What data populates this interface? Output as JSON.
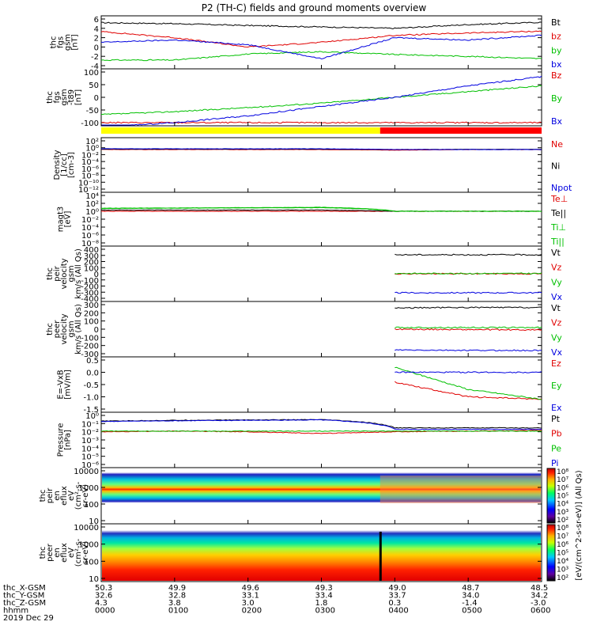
{
  "title": "P2 (TH-C) fields and ground moments overview",
  "panels": [
    {
      "key": "fgs_gsm",
      "ylabel": [
        "thc",
        "fgs",
        "gsm",
        "[nT]"
      ],
      "ylim": [
        -4,
        6
      ],
      "log": false,
      "ticks": [
        "6",
        "4",
        "2",
        "0",
        "-2",
        "-4"
      ],
      "legend": [
        {
          "label": "Bt",
          "color": "#000000"
        },
        {
          "label": "bz",
          "color": "#e00000"
        },
        {
          "label": "by",
          "color": "#00c000"
        },
        {
          "label": "bx",
          "color": "#0000e0"
        }
      ]
    },
    {
      "key": "fgs_gse_t89",
      "ylabel": [
        "thc",
        "fgs",
        "gsm",
        "-t89",
        "[nT]"
      ],
      "ylim": [
        -120,
        100
      ],
      "log": false,
      "ticks": [
        "100",
        "50",
        "0",
        "-50",
        "-100"
      ],
      "legend": [
        {
          "label": "Bz",
          "color": "#e00000"
        },
        {
          "label": "By",
          "color": "#00c000"
        },
        {
          "label": "Bx",
          "color": "#0000e0"
        }
      ]
    },
    {
      "key": "density",
      "ylabel": [
        "Density",
        "[1/cc]",
        "[cm-3]"
      ],
      "log": true,
      "ticks": [
        "10²",
        "10⁰",
        "10⁻²",
        "10⁻⁴",
        "10⁻⁶",
        "10⁻⁸",
        "10⁻¹⁰",
        "10⁻¹²"
      ],
      "legend": [
        {
          "label": "Ne",
          "color": "#e00000"
        },
        {
          "label": "Ni",
          "color": "#000000"
        },
        {
          "label": "Npot",
          "color": "#0000e0"
        }
      ]
    },
    {
      "key": "temperature",
      "ylabel": [
        "magt3",
        "[eV]"
      ],
      "log": true,
      "ticks": [
        "10⁴",
        "10²",
        "10⁰",
        "10⁻²",
        "10⁻⁴",
        "10⁻⁶",
        "10⁻⁸"
      ],
      "legend": [
        {
          "label": "Te⊥",
          "color": "#e00000"
        },
        {
          "label": "Te||",
          "color": "#000000"
        },
        {
          "label": "Ti⊥",
          "color": "#00c000"
        },
        {
          "label": "Ti||",
          "color": "#00c000"
        }
      ]
    },
    {
      "key": "peir_velocity",
      "ylabel": [
        "thc",
        "peir",
        "velocity",
        "gsm",
        "km/s (All Qs)"
      ],
      "ylim": [
        -400,
        400
      ],
      "log": false,
      "ticks": [
        "400",
        "300",
        "200",
        "100",
        "0",
        "-100",
        "-200",
        "-300",
        "-400"
      ],
      "legend": [
        {
          "label": "Vt",
          "color": "#000000"
        },
        {
          "label": "Vz",
          "color": "#e00000"
        },
        {
          "label": "Vy",
          "color": "#00c000"
        },
        {
          "label": "Vx",
          "color": "#0000e0"
        }
      ]
    },
    {
      "key": "peer_velocity",
      "ylabel": [
        "thc",
        "peer",
        "velocity",
        "gsm",
        "km/s (All Qs)"
      ],
      "ylim": [
        -300,
        300
      ],
      "log": false,
      "ticks": [
        "300",
        "200",
        "100",
        "0",
        "-100",
        "-200",
        "-300"
      ],
      "legend": [
        {
          "label": "Vt",
          "color": "#000000"
        },
        {
          "label": "Vz",
          "color": "#e00000"
        },
        {
          "label": "Vy",
          "color": "#00c000"
        },
        {
          "label": "Vx",
          "color": "#0000e0"
        }
      ]
    },
    {
      "key": "efield",
      "ylabel": [
        "E=-VxB",
        "[mV/m]"
      ],
      "ylim": [
        -1.5,
        0.5
      ],
      "log": false,
      "ticks": [
        "0.5",
        "0.0",
        "-0.5",
        "-1.0",
        "-1.5"
      ],
      "legend": [
        {
          "label": "Ez",
          "color": "#e00000"
        },
        {
          "label": "Ey",
          "color": "#00c000"
        },
        {
          "label": "Ex",
          "color": "#0000e0"
        }
      ]
    },
    {
      "key": "pressure",
      "ylabel": [
        "Pressure",
        "[nPa]"
      ],
      "log": true,
      "ticks": [
        "10⁰",
        "10⁻¹",
        "10⁻²",
        "10⁻³",
        "10⁻⁴",
        "10⁻⁵",
        "10⁻⁶"
      ],
      "legend": [
        {
          "label": "Pt",
          "color": "#000000"
        },
        {
          "label": "Pb",
          "color": "#e00000"
        },
        {
          "label": "Pe",
          "color": "#00c000"
        },
        {
          "label": "Pi",
          "color": "#0000e0"
        }
      ]
    },
    {
      "key": "peir_eflux",
      "ylabel": [
        "thc",
        "peir",
        "en",
        "eflux",
        "eV",
        "(cm²-s-",
        "sr-eV)"
      ],
      "log": true,
      "ticks": [
        "10000",
        "1000",
        "100",
        "10"
      ]
    },
    {
      "key": "peer_eflux",
      "ylabel": [
        "thc",
        "peer",
        "en",
        "eflux",
        "eV",
        "(cm²-s-",
        "sr-eV)"
      ],
      "log": true,
      "ticks": [
        "10000",
        "1000",
        "100",
        "10"
      ]
    }
  ],
  "colorbar": {
    "title": "[eV/(cm^2-s-sr-eV)] (All Qs)",
    "ticks_top": [
      "10⁸",
      "10⁷",
      "10⁶",
      "10⁵",
      "10⁴",
      "10³",
      "10²"
    ],
    "ticks_bottom": [
      "10⁸",
      "10⁷",
      "10⁶",
      "10⁵",
      "10⁴",
      "10³",
      "10²"
    ]
  },
  "footer": {
    "rows": [
      {
        "label": "thc_X-GSM",
        "values": [
          "50.3",
          "49.9",
          "49.6",
          "49.3",
          "49.0",
          "48.7",
          "48.5"
        ]
      },
      {
        "label": "thc_Y-GSM",
        "values": [
          "32.6",
          "32.8",
          "33.1",
          "33.4",
          "33.7",
          "34.0",
          "34.2"
        ]
      },
      {
        "label": "thc_Z-GSM",
        "values": [
          "4.3",
          "3.8",
          "3.0",
          "1.8",
          "0.3",
          "-1.4",
          "-3.0"
        ]
      },
      {
        "label": "hhmm",
        "values": [
          "0000",
          "0100",
          "0200",
          "0300",
          "0400",
          "0500",
          "0600"
        ]
      }
    ],
    "date": "2019 Dec 29"
  },
  "chart_data": {
    "type": "line",
    "title": "P2 (TH-C) fields and ground moments overview",
    "x_ticks": [
      "0000",
      "0100",
      "0200",
      "0300",
      "0400",
      "0500",
      "0600"
    ],
    "x": [
      0,
      1,
      2,
      3,
      4,
      5,
      6
    ],
    "mode_bar": [
      {
        "from": 0,
        "to": 3.8,
        "color": "#ffff00"
      },
      {
        "from": 3.8,
        "to": 6,
        "color": "#ff0000"
      }
    ],
    "panels": [
      {
        "key": "fgs_gsm",
        "series": [
          {
            "name": "Bt",
            "values": [
              5.2,
              5.0,
              4.6,
              4.3,
              4.0,
              4.8,
              5.3
            ]
          },
          {
            "name": "bz",
            "values": [
              3.3,
              2.0,
              0.0,
              1.0,
              2.5,
              3.0,
              3.4
            ]
          },
          {
            "name": "by",
            "values": [
              -2.8,
              -2.8,
              -1.5,
              -1.0,
              -1.6,
              -2.0,
              -2.5
            ]
          },
          {
            "name": "bx",
            "values": [
              1.0,
              1.5,
              0.5,
              -2.5,
              2.0,
              1.5,
              2.5
            ]
          }
        ]
      },
      {
        "key": "fgs_gse_t89",
        "series": [
          {
            "name": "Bz",
            "values": [
              -120,
              -120,
              -120,
              -120,
              -120,
              -120,
              -120
            ]
          },
          {
            "name": "By",
            "values": [
              -85,
              -72,
              -55,
              -35,
              -10,
              15,
              40
            ]
          },
          {
            "name": "Bx",
            "values": [
              -140,
              -120,
              -90,
              -50,
              -10,
              40,
              80
            ]
          }
        ]
      },
      {
        "key": "density",
        "series": [
          {
            "name": "Ne",
            "values": [
              0.3,
              0.3,
              0.3,
              0.3,
              0.2,
              0.3,
              0.3
            ]
          },
          {
            "name": "Ni",
            "values": [
              0.4,
              0.4,
              0.4,
              0.4,
              0.3,
              0.35,
              0.35
            ]
          },
          {
            "name": "Npot",
            "values": [
              0.5,
              0.5,
              0.5,
              0.5,
              0.3,
              0.3,
              0.3
            ]
          }
        ]
      },
      {
        "key": "temperature",
        "series": [
          {
            "name": "Te⊥",
            "values": [
              1,
              1,
              1,
              1,
              1,
              1,
              1
            ]
          },
          {
            "name": "Te||",
            "values": [
              2,
              2,
              2,
              2,
              1,
              1,
              1
            ]
          },
          {
            "name": "Ti⊥",
            "values": [
              5,
              6,
              7,
              8,
              1,
              1,
              1
            ]
          },
          {
            "name": "Ti||",
            "values": [
              6,
              7,
              8,
              10,
              1,
              1,
              1
            ]
          }
        ]
      },
      {
        "key": "peir_velocity",
        "series": [
          {
            "name": "Vt",
            "values": [
              null,
              null,
              null,
              null,
              310,
              310,
              310
            ]
          },
          {
            "name": "Vz",
            "values": [
              null,
              null,
              null,
              null,
              0,
              0,
              0
            ]
          },
          {
            "name": "Vy",
            "values": [
              null,
              null,
              null,
              null,
              5,
              5,
              5
            ]
          },
          {
            "name": "Vx",
            "values": [
              null,
              null,
              null,
              null,
              -310,
              -310,
              -310
            ]
          }
        ]
      },
      {
        "key": "peer_velocity",
        "series": [
          {
            "name": "Vt",
            "values": [
              null,
              null,
              null,
              null,
              260,
              265,
              265
            ]
          },
          {
            "name": "Vz",
            "values": [
              null,
              null,
              null,
              null,
              0,
              -5,
              -10
            ]
          },
          {
            "name": "Vy",
            "values": [
              null,
              null,
              null,
              null,
              20,
              20,
              20
            ]
          },
          {
            "name": "Vx",
            "values": [
              null,
              null,
              null,
              null,
              -255,
              -260,
              -260
            ]
          }
        ]
      },
      {
        "key": "efield",
        "series": [
          {
            "name": "Ez",
            "values": [
              null,
              null,
              null,
              null,
              -0.4,
              -1.0,
              -1.1
            ]
          },
          {
            "name": "Ey",
            "values": [
              null,
              null,
              null,
              null,
              0.2,
              -0.7,
              -1.1
            ]
          },
          {
            "name": "Ex",
            "values": [
              null,
              null,
              null,
              null,
              0.0,
              0.0,
              0.0
            ]
          }
        ]
      },
      {
        "key": "pressure",
        "series": [
          {
            "name": "Pt",
            "values": [
              0.2,
              0.25,
              0.28,
              0.3,
              0.03,
              0.03,
              0.03
            ]
          },
          {
            "name": "Pb",
            "values": [
              0.01,
              0.012,
              0.01,
              0.006,
              0.01,
              0.012,
              0.015
            ]
          },
          {
            "name": "Pe",
            "values": [
              0.012,
              0.012,
              0.012,
              0.012,
              0.012,
              0.012,
              0.012
            ]
          },
          {
            "name": "Pi",
            "values": [
              0.18,
              0.22,
              0.25,
              0.28,
              0.02,
              0.02,
              0.02
            ]
          }
        ]
      }
    ]
  }
}
